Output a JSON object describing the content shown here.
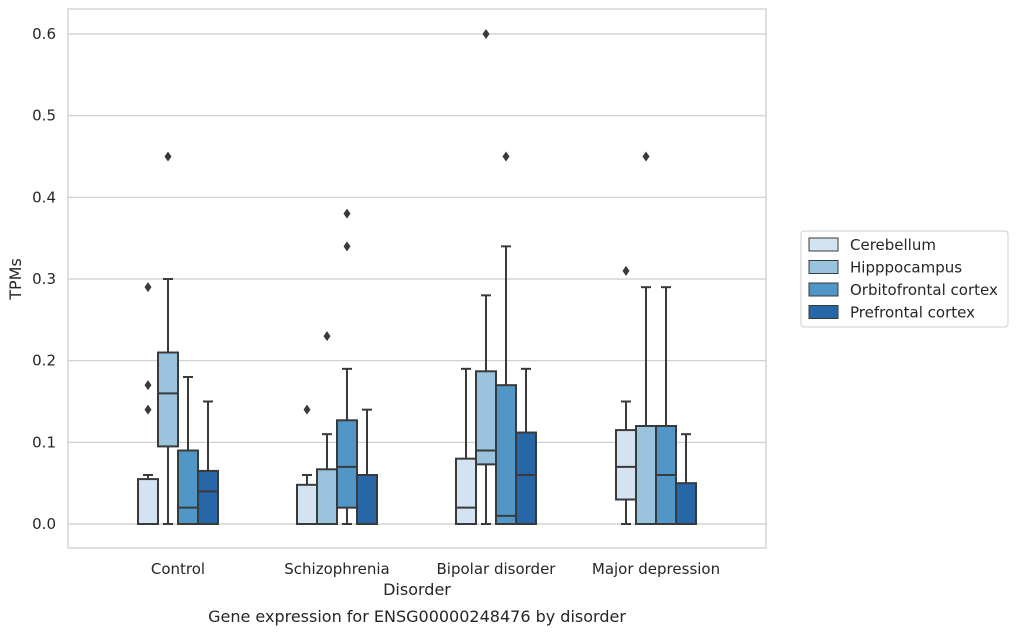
{
  "caption": "Gene expression for ENSG00000248476 by disorder",
  "chart_data": {
    "type": "box",
    "title": "",
    "xlabel": "Disorder",
    "ylabel": "TPMs",
    "ylim": [
      -0.03,
      0.63
    ],
    "yticks": [
      0.0,
      0.1,
      0.2,
      0.3,
      0.4,
      0.5,
      0.6
    ],
    "ytick_labels": [
      "0.0",
      "0.1",
      "0.2",
      "0.3",
      "0.4",
      "0.5",
      "0.6"
    ],
    "grid": "horizontal",
    "legend_position": "right",
    "categories": [
      "Control",
      "Schizophrenia",
      "Bipolar disorder",
      "Major depression"
    ],
    "series": [
      {
        "name": "Cerebellum",
        "color": "#d4e3f2",
        "boxes": [
          {
            "whislo": 0.0,
            "q1": 0.0,
            "med": 0.0,
            "q3": 0.055,
            "whishi": 0.06,
            "fliers": [
              0.14,
              0.17,
              0.29
            ]
          },
          {
            "whislo": 0.0,
            "q1": 0.0,
            "med": 0.0,
            "q3": 0.048,
            "whishi": 0.06,
            "fliers": [
              0.14
            ]
          },
          {
            "whislo": 0.0,
            "q1": 0.0,
            "med": 0.02,
            "q3": 0.08,
            "whishi": 0.19,
            "fliers": []
          },
          {
            "whislo": 0.0,
            "q1": 0.03,
            "med": 0.07,
            "q3": 0.115,
            "whishi": 0.15,
            "fliers": [
              0.31
            ]
          }
        ]
      },
      {
        "name": "Hipppocampus",
        "color": "#9ac4dd",
        "boxes": [
          {
            "whislo": 0.0,
            "q1": 0.095,
            "med": 0.16,
            "q3": 0.21,
            "whishi": 0.3,
            "fliers": [
              0.45
            ]
          },
          {
            "whislo": 0.0,
            "q1": 0.0,
            "med": 0.0,
            "q3": 0.067,
            "whishi": 0.11,
            "fliers": [
              0.23
            ]
          },
          {
            "whislo": 0.0,
            "q1": 0.073,
            "med": 0.09,
            "q3": 0.187,
            "whishi": 0.28,
            "fliers": [
              0.6
            ]
          },
          {
            "whislo": 0.0,
            "q1": 0.0,
            "med": 0.0,
            "q3": 0.12,
            "whishi": 0.29,
            "fliers": [
              0.45
            ]
          }
        ]
      },
      {
        "name": "Orbitofrontal cortex",
        "color": "#5096c7",
        "boxes": [
          {
            "whislo": 0.0,
            "q1": 0.0,
            "med": 0.02,
            "q3": 0.09,
            "whishi": 0.18,
            "fliers": []
          },
          {
            "whislo": 0.0,
            "q1": 0.02,
            "med": 0.07,
            "q3": 0.127,
            "whishi": 0.19,
            "fliers": [
              0.34,
              0.38
            ]
          },
          {
            "whislo": 0.0,
            "q1": 0.0,
            "med": 0.01,
            "q3": 0.17,
            "whishi": 0.34,
            "fliers": [
              0.45
            ]
          },
          {
            "whislo": 0.0,
            "q1": 0.0,
            "med": 0.06,
            "q3": 0.12,
            "whishi": 0.29,
            "fliers": []
          }
        ]
      },
      {
        "name": "Prefrontal cortex",
        "color": "#2767a8",
        "boxes": [
          {
            "whislo": 0.0,
            "q1": 0.0,
            "med": 0.04,
            "q3": 0.065,
            "whishi": 0.15,
            "fliers": []
          },
          {
            "whislo": 0.0,
            "q1": 0.0,
            "med": 0.0,
            "q3": 0.06,
            "whishi": 0.14,
            "fliers": []
          },
          {
            "whislo": 0.0,
            "q1": 0.0,
            "med": 0.06,
            "q3": 0.112,
            "whishi": 0.19,
            "fliers": []
          },
          {
            "whislo": 0.0,
            "q1": 0.0,
            "med": 0.0,
            "q3": 0.05,
            "whishi": 0.11,
            "fliers": []
          }
        ]
      }
    ]
  }
}
